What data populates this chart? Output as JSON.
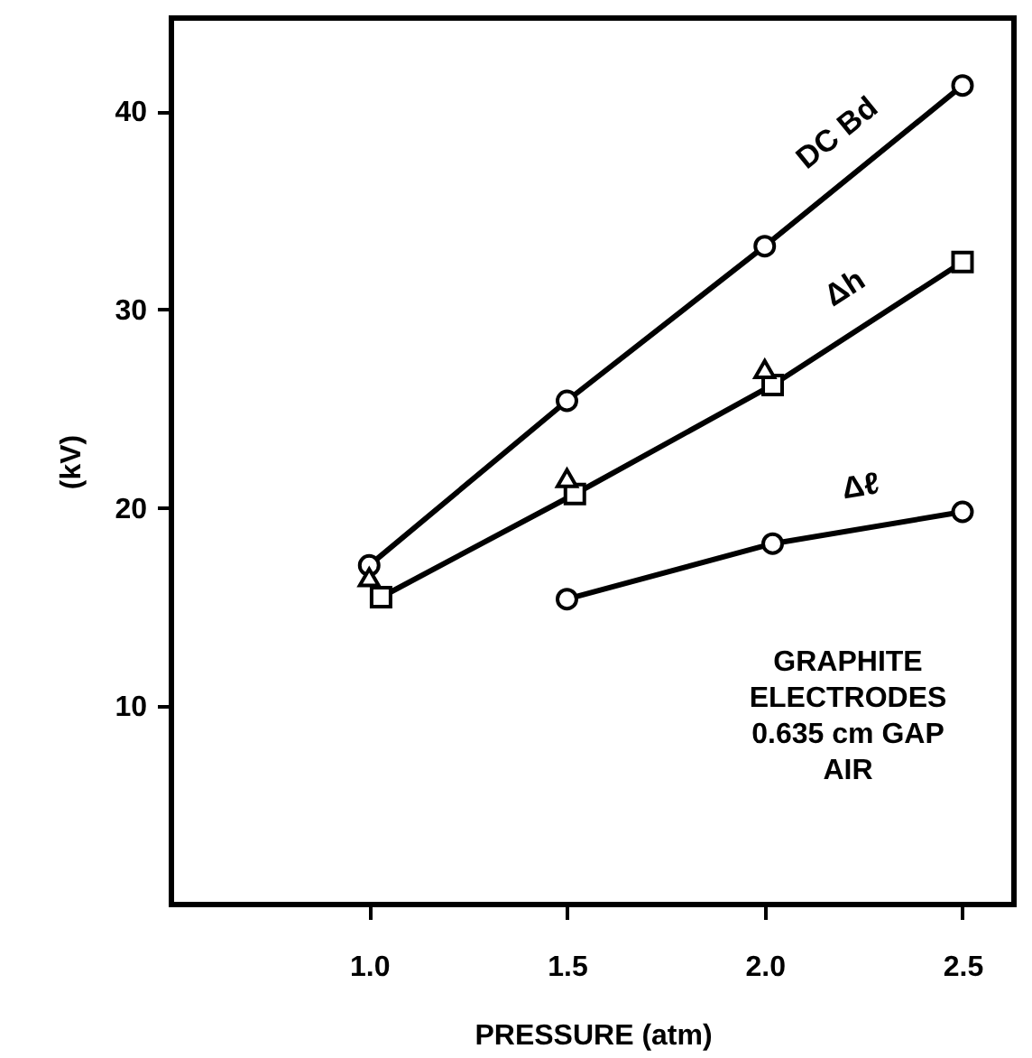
{
  "chart_data": {
    "type": "line",
    "xlabel": "PRESSURE (atm)",
    "ylabel": "(kV)",
    "series": [
      {
        "name": "DC Bd",
        "marker": "circle",
        "color": "#000000",
        "x": [
          1.0,
          1.5,
          2.0,
          2.5
        ],
        "values": [
          17.1,
          25.4,
          33.2,
          41.3
        ]
      },
      {
        "name": "Δh",
        "marker": "square",
        "color": "#000000",
        "x": [
          1.03,
          1.52,
          2.02,
          2.5
        ],
        "values": [
          15.5,
          20.7,
          26.2,
          32.4
        ]
      },
      {
        "type": "scatter",
        "marker": "triangle",
        "color": "#000000",
        "x": [
          1.0,
          1.5,
          2.0
        ],
        "values": [
          16.5,
          21.5,
          27.0
        ]
      },
      {
        "name": "Δℓ",
        "marker": "circle",
        "color": "#000000",
        "x": [
          1.5,
          2.02,
          2.5
        ],
        "values": [
          15.4,
          18.2,
          19.8
        ]
      }
    ],
    "xlim": [
      0.5,
      2.63
    ],
    "ylim": [
      0,
      44.7
    ],
    "xticks": [
      {
        "value": 1.0,
        "label": "1.0"
      },
      {
        "value": 1.5,
        "label": "1.5"
      },
      {
        "value": 2.0,
        "label": "2.0"
      },
      {
        "value": 2.5,
        "label": "2.5"
      }
    ],
    "yticks": [
      10,
      20,
      30,
      40
    ],
    "annotations": [
      "GRAPHITE\nELECTRODES\n0.635 cm GAP\nAIR"
    ],
    "grid": false
  }
}
